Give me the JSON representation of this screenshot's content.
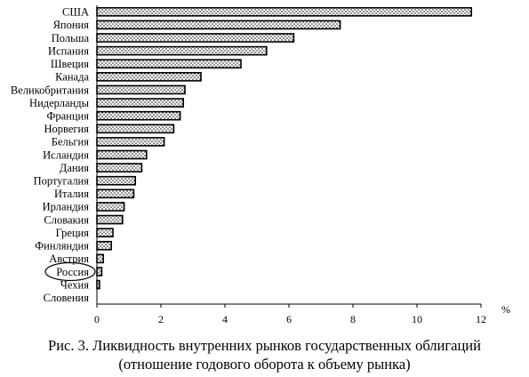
{
  "chart_data": {
    "type": "bar",
    "orientation": "horizontal",
    "categories": [
      "США",
      "Япония",
      "Польша",
      "Испания",
      "Швеция",
      "Канада",
      "Великобритания",
      "Нидерланды",
      "Франция",
      "Норвегия",
      "Бельгия",
      "Исландия",
      "Дания",
      "Португалия",
      "Италия",
      "Ирландия",
      "Словакия",
      "Греция",
      "Финляндия",
      "Австрия",
      "Россия",
      "Чехия",
      "Словения"
    ],
    "values": [
      11.7,
      7.6,
      6.15,
      5.3,
      4.5,
      3.25,
      2.75,
      2.7,
      2.6,
      2.4,
      2.1,
      1.55,
      1.4,
      1.2,
      1.15,
      0.85,
      0.8,
      0.5,
      0.45,
      0.2,
      0.15,
      0.08,
      0
    ],
    "xlim": [
      0,
      12
    ],
    "xticks": [
      0,
      2,
      4,
      6,
      8,
      10,
      12
    ],
    "xticklabels": [
      "0",
      "2",
      "4",
      "6",
      "8",
      "10",
      "12"
    ],
    "xlabel": "%",
    "highlighted_category": "Россия",
    "bar_fill": "dotted",
    "grid": false,
    "legend": false
  },
  "caption": {
    "line1": "Рис. 3. Ликвидность внутренних рынков государственных облигаций",
    "line2": "(отношение годового оборота к объему рынка)"
  }
}
